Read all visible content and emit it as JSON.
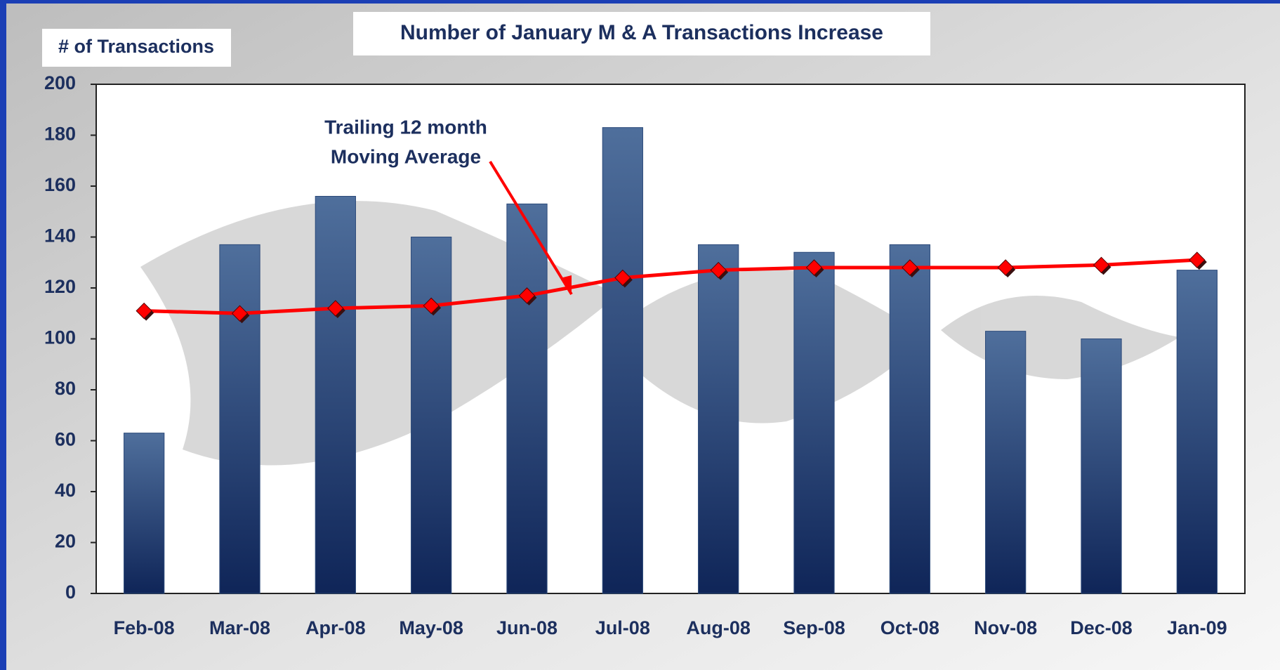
{
  "chart_data": {
    "type": "bar_line",
    "title": "Number of January M & A Transactions Increase",
    "y_label": "# of Transactions",
    "annotation": [
      "Trailing 12 month",
      "Moving Average"
    ],
    "categories": [
      "Feb-08",
      "Mar-08",
      "Apr-08",
      "May-08",
      "Jun-08",
      "Jul-08",
      "Aug-08",
      "Sep-08",
      "Oct-08",
      "Nov-08",
      "Dec-08",
      "Jan-09"
    ],
    "series": [
      {
        "type": "bar",
        "color": "#2c4a7a",
        "values": [
          63,
          137,
          156,
          140,
          153,
          183,
          137,
          134,
          137,
          103,
          100,
          127
        ]
      },
      {
        "type": "line",
        "color": "#ff0000",
        "values": [
          111,
          110,
          112,
          113,
          117,
          124,
          127,
          128,
          128,
          128,
          129,
          131
        ]
      }
    ],
    "ylim": [
      0,
      200
    ],
    "yticks": [
      0,
      20,
      40,
      60,
      80,
      100,
      120,
      140,
      160,
      180,
      200
    ]
  }
}
